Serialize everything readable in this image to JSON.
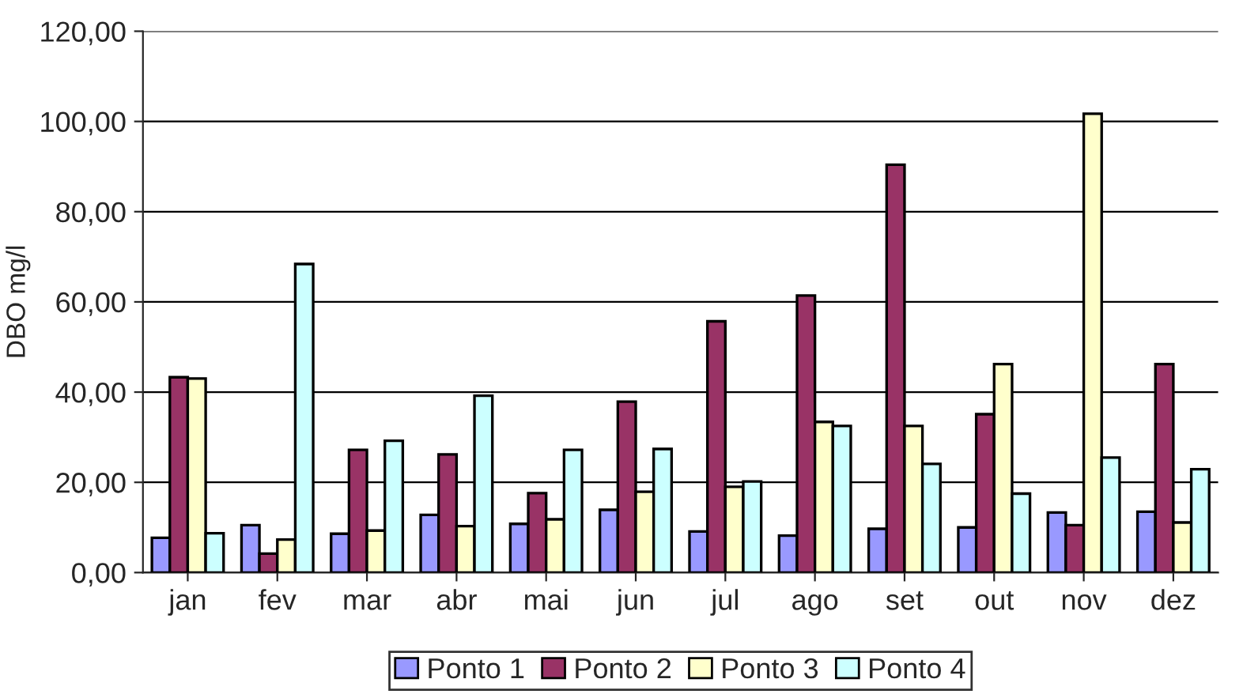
{
  "chart_data": {
    "type": "bar",
    "ylabel": "DBO mg/l",
    "categories": [
      "jan",
      "fev",
      "mar",
      "abr",
      "mai",
      "jun",
      "jul",
      "ago",
      "set",
      "out",
      "nov",
      "dez"
    ],
    "series": [
      {
        "name": "Ponto 1",
        "color": "#9999ff",
        "values": [
          7.7,
          10.5,
          8.6,
          12.8,
          10.8,
          13.9,
          9.1,
          8.2,
          9.7,
          10.0,
          13.3,
          13.5
        ]
      },
      {
        "name": "Ponto 2",
        "color": "#993366",
        "values": [
          43.3,
          4.2,
          27.2,
          26.2,
          17.6,
          37.9,
          55.7,
          61.4,
          90.4,
          35.1,
          10.5,
          46.2
        ]
      },
      {
        "name": "Ponto 3",
        "color": "#ffffcc",
        "values": [
          43.0,
          7.3,
          9.3,
          10.3,
          11.8,
          17.9,
          19.0,
          33.4,
          32.5,
          46.2,
          101.7,
          11.1
        ]
      },
      {
        "name": "Ponto 4",
        "color": "#ccffff",
        "values": [
          8.7,
          68.4,
          29.2,
          39.2,
          27.2,
          27.4,
          20.2,
          32.5,
          24.1,
          17.5,
          25.5,
          22.9
        ]
      }
    ],
    "ylim": [
      0,
      120
    ],
    "yticks": [
      {
        "value": 0,
        "label": "0,00"
      },
      {
        "value": 20,
        "label": "20,00"
      },
      {
        "value": 40,
        "label": "40,00"
      },
      {
        "value": 60,
        "label": "60,00"
      },
      {
        "value": 80,
        "label": "80,00"
      },
      {
        "value": 100,
        "label": "100,00"
      },
      {
        "value": 120,
        "label": "120,00"
      }
    ],
    "grid": "y",
    "legend": "bottom"
  }
}
